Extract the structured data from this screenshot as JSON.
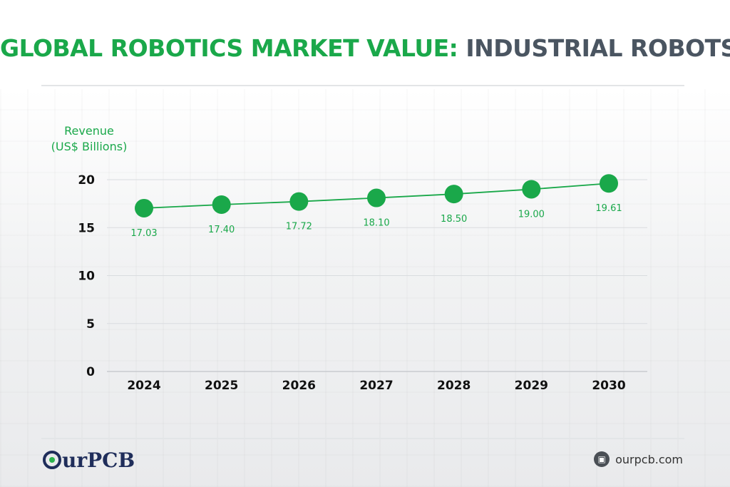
{
  "header": {
    "title_part1": "GLOBAL ROBOTICS MARKET VALUE:",
    "title_part2": "INDUSTRIAL ROBOTS"
  },
  "chart_data": {
    "type": "line",
    "title": "GLOBAL ROBOTICS MARKET VALUE: INDUSTRIAL ROBOTS",
    "ylabel_line1": "Revenue",
    "ylabel_line2": "(US$ Billions)",
    "xlabel": "",
    "categories": [
      "2024",
      "2025",
      "2026",
      "2027",
      "2028",
      "2029",
      "2030"
    ],
    "series": [
      {
        "values": [
          17.03,
          17.4,
          17.72,
          18.1,
          18.5,
          19.0,
          19.61
        ],
        "color": "#1aa84a"
      }
    ],
    "data_labels": [
      "17.03",
      "17.40",
      "17.72",
      "18.10",
      "18.50",
      "19.00",
      "19.61"
    ],
    "yticks": [
      0,
      5,
      10,
      15,
      20
    ],
    "ylim": [
      0,
      20
    ],
    "grid": true
  },
  "footer": {
    "logo_text": "urPCB",
    "site_icon": "laptop-icon",
    "site": "ourpcb.com"
  }
}
